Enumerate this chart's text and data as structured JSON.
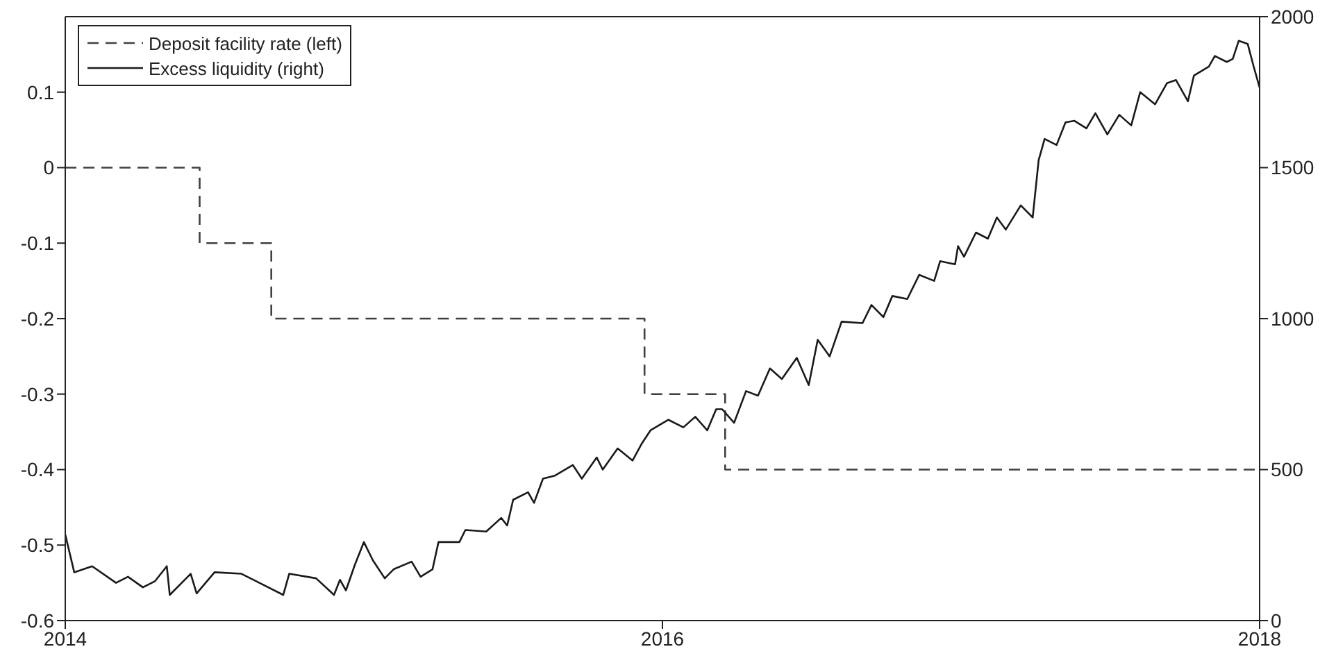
{
  "chart_data": {
    "type": "line",
    "xlim": [
      2014,
      2018
    ],
    "xticks": [
      2014,
      2016,
      2018
    ],
    "ylim": [
      -0.6,
      0.2
    ],
    "yticks": [
      -0.6,
      -0.5,
      -0.4,
      -0.3,
      -0.2,
      -0.1,
      0,
      0.1
    ],
    "y2lim": [
      0,
      2000
    ],
    "y2ticks": [
      0,
      500,
      1000,
      1500,
      2000
    ],
    "grid": false,
    "legend": "top left",
    "marker": "none",
    "series": [
      {
        "name": "Deposit facility rate (left)",
        "type": "step",
        "color": "#404040",
        "line_style": "dashed",
        "x": [
          2014,
          2014.45,
          2014.69,
          2015.94,
          2016.21,
          2018
        ],
        "values": [
          0,
          -0.1,
          -0.2,
          -0.3,
          -0.4,
          -0.4
        ]
      },
      {
        "name": "Excess liquidity (right)",
        "type": "line",
        "axis": "y2",
        "color": "#1a1a1a",
        "line_style": "solid",
        "x": [
          2014.0,
          2014.03,
          2014.09,
          2014.17,
          2014.21,
          2014.26,
          2014.3,
          2014.34,
          2014.35,
          2014.42,
          2014.44,
          2014.5,
          2014.59,
          2014.65,
          2014.73,
          2014.75,
          2014.84,
          2014.9,
          2014.92,
          2014.94,
          2014.97,
          2015.0,
          2015.03,
          2015.07,
          2015.1,
          2015.16,
          2015.19,
          2015.23,
          2015.25,
          2015.32,
          2015.34,
          2015.41,
          2015.46,
          2015.48,
          2015.5,
          2015.55,
          2015.57,
          2015.6,
          2015.64,
          2015.7,
          2015.73,
          2015.78,
          2015.8,
          2015.85,
          2015.9,
          2015.93,
          2015.96,
          2016.02,
          2016.07,
          2016.11,
          2016.15,
          2016.18,
          2016.2,
          2016.24,
          2016.28,
          2016.32,
          2016.36,
          2016.4,
          2016.45,
          2016.49,
          2016.52,
          2016.56,
          2016.6,
          2016.67,
          2016.7,
          2016.74,
          2016.77,
          2016.82,
          2016.86,
          2016.91,
          2016.93,
          2016.98,
          2016.99,
          2017.01,
          2017.05,
          2017.09,
          2017.12,
          2017.15,
          2017.2,
          2017.24,
          2017.26,
          2017.28,
          2017.32,
          2017.35,
          2017.38,
          2017.42,
          2017.45,
          2017.49,
          2017.53,
          2017.57,
          2017.6,
          2017.65,
          2017.69,
          2017.72,
          2017.76,
          2017.78,
          2017.83,
          2017.85,
          2017.89,
          2017.91,
          2017.93,
          2017.96,
          2017.98,
          2018.0
        ],
        "values": [
          285,
          160,
          180,
          125,
          145,
          110,
          130,
          180,
          85,
          155,
          90,
          160,
          155,
          125,
          85,
          155,
          140,
          85,
          135,
          100,
          185,
          260,
          200,
          140,
          170,
          195,
          145,
          170,
          260,
          260,
          300,
          295,
          340,
          315,
          400,
          425,
          390,
          470,
          480,
          515,
          470,
          540,
          500,
          570,
          530,
          585,
          630,
          665,
          640,
          675,
          630,
          700,
          700,
          655,
          760,
          745,
          835,
          800,
          870,
          780,
          930,
          875,
          990,
          985,
          1045,
          1005,
          1075,
          1065,
          1145,
          1125,
          1190,
          1180,
          1240,
          1205,
          1285,
          1265,
          1335,
          1295,
          1375,
          1335,
          1525,
          1595,
          1575,
          1650,
          1655,
          1630,
          1680,
          1610,
          1675,
          1640,
          1750,
          1710,
          1780,
          1790,
          1720,
          1805,
          1835,
          1870,
          1850,
          1860,
          1920,
          1910,
          1835,
          1765
        ]
      }
    ]
  }
}
